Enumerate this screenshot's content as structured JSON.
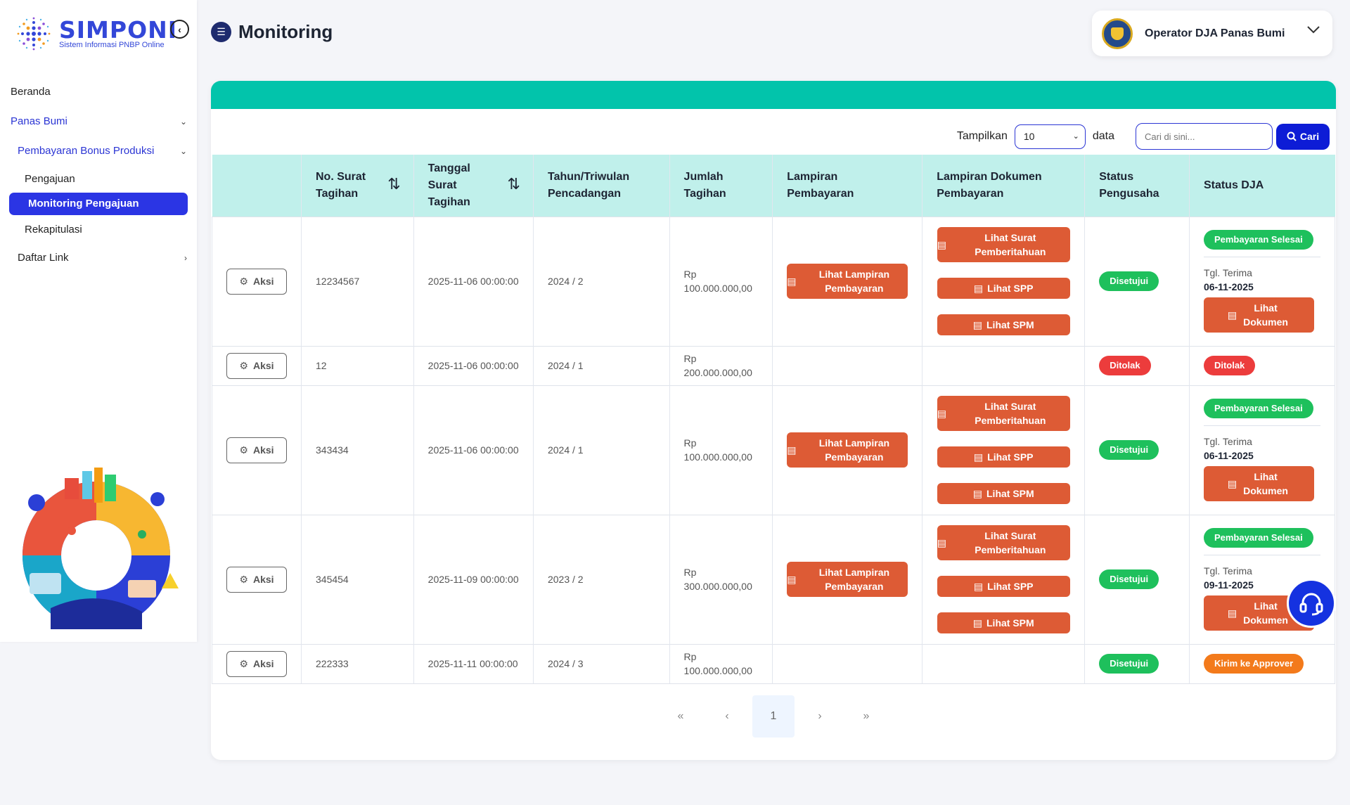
{
  "app": {
    "name": "SIMPONI",
    "subtitle": "Sistem Informasi PNBP Online"
  },
  "sidebar": {
    "items": [
      {
        "label": "Beranda"
      },
      {
        "label": "Panas Bumi"
      },
      {
        "label": "Pembayaran Bonus Produksi"
      },
      {
        "label": "Pengajuan"
      },
      {
        "label": "Monitoring Pengajuan"
      },
      {
        "label": "Rekapitulasi"
      },
      {
        "label": "Daftar Link"
      }
    ]
  },
  "header": {
    "title": "Monitoring",
    "user": "Operator DJA Panas Bumi"
  },
  "toolbar": {
    "show_label": "Tampilkan",
    "page_size": "10",
    "data_label": "data",
    "search_placeholder": "Cari di sini...",
    "search_button": "Cari"
  },
  "table": {
    "headers": [
      "No. Surat Tagihan",
      "Tanggal Surat Tagihan",
      "Tahun/Triwulan Pencadangan",
      "Jumlah Tagihan",
      "Lampiran Pembayaran",
      "Lampiran Dokumen Pembayaran",
      "Status Pengusaha",
      "Status DJA"
    ],
    "labels": {
      "aksi": "Aksi",
      "lihat_lampiran": "Lihat Lampiran Pembayaran",
      "lihat_surat": "Lihat Surat Pemberitahuan",
      "lihat_spp": "Lihat SPP",
      "lihat_spm": "Lihat SPM",
      "lihat_dokumen": "Lihat Dokumen",
      "tgl_terima": "Tgl. Terima"
    },
    "rows": [
      {
        "no": "12234567",
        "tanggal": "2025-11-06 00:00:00",
        "periode": "2024 / 2",
        "currency": "Rp",
        "amount": "100.000.000,00",
        "status_pengusaha": "Disetujui",
        "status_dja": "Pembayaran Selesai",
        "tgl_terima": "06-11-2025"
      },
      {
        "no": "12",
        "tanggal": "2025-11-06 00:00:00",
        "periode": "2024 / 1",
        "currency": "Rp",
        "amount": "200.000.000,00",
        "status_pengusaha": "Ditolak",
        "status_dja": "Ditolak"
      },
      {
        "no": "343434",
        "tanggal": "2025-11-06 00:00:00",
        "periode": "2024 / 1",
        "currency": "Rp",
        "amount": "100.000.000,00",
        "status_pengusaha": "Disetujui",
        "status_dja": "Pembayaran Selesai",
        "tgl_terima": "06-11-2025"
      },
      {
        "no": "345454",
        "tanggal": "2025-11-09 00:00:00",
        "periode": "2023 / 2",
        "currency": "Rp",
        "amount": "300.000.000,00",
        "status_pengusaha": "Disetujui",
        "status_dja": "Pembayaran Selesai",
        "tgl_terima": "09-11-2025"
      },
      {
        "no": "222333",
        "tanggal": "2025-11-11 00:00:00",
        "periode": "2024 / 3",
        "currency": "Rp",
        "amount": "100.000.000,00",
        "status_pengusaha": "Disetujui",
        "status_dja": "Kirim ke Approver"
      }
    ]
  },
  "pagination": {
    "first": "«",
    "prev": "‹",
    "current": "1",
    "next": "›",
    "last": "»"
  },
  "colors": {
    "primary": "#2b35e4",
    "teal": "#02c4ab",
    "orange_btn": "#dd5b35",
    "green": "#1ec05c",
    "red": "#ec3c3c",
    "orange": "#f37a1b"
  },
  "icons": [
    "collapse-icon",
    "list-icon",
    "chevron-down-icon",
    "gear-icon",
    "document-icon",
    "search-icon",
    "headset-icon",
    "sort-icon"
  ]
}
